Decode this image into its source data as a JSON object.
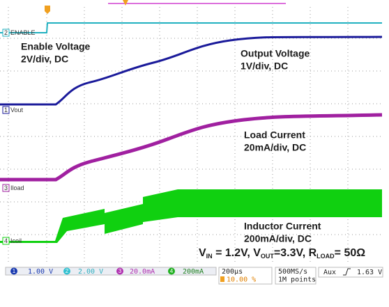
{
  "annotations": [
    {
      "title": "Enable Voltage",
      "subtitle": "2V/div, DC"
    },
    {
      "title": "Output Voltage",
      "subtitle": "1V/div, DC"
    },
    {
      "title": "Load Current",
      "subtitle": "20mA/div, DC"
    },
    {
      "title": "Inductor Current",
      "subtitle": "200mA/div, DC"
    }
  ],
  "conditions": [
    "V",
    "IN",
    " = 1.2V,  V",
    "OUT",
    "=3.3V, R",
    "LOAD",
    "= 50Ω"
  ],
  "traces": [
    "ENABLE",
    "Vout",
    "Iload",
    "Icoil"
  ],
  "channels": [
    {
      "number": "1",
      "scale": "1.00 V"
    },
    {
      "number": "2",
      "scale": "2.00 V"
    },
    {
      "number": "3",
      "scale": "20.0mA"
    },
    {
      "number": "4",
      "scale": "200mA"
    }
  ],
  "timebase": {
    "scale": "200µs",
    "position": "10.00 %"
  },
  "acquisition": {
    "rate": "500MS/s",
    "length": "1M points"
  },
  "trigger": {
    "source": "Aux",
    "level": "1.63 V"
  }
}
